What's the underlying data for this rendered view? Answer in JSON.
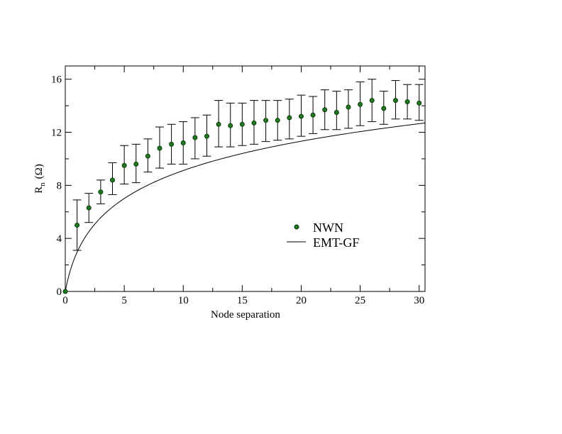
{
  "chart_data": {
    "type": "scatter",
    "xlabel": "Node separation",
    "ylabel": "R",
    "ylabel_sub": "n",
    "ylabel_unit": "(Ω)",
    "xlim": [
      0,
      30.5
    ],
    "ylim": [
      0,
      17
    ],
    "xticks": [
      0,
      5,
      10,
      15,
      20,
      25,
      30
    ],
    "yticks": [
      0,
      4,
      8,
      12,
      16
    ],
    "x_minor_step": 2.5,
    "y_minor_step": 2,
    "grid": false,
    "legend_position": "center-right",
    "series": [
      {
        "name": "NWN",
        "kind": "points-with-errorbars",
        "color": "#1f7a1f",
        "x": [
          0,
          1,
          2,
          3,
          4,
          5,
          6,
          7,
          8,
          9,
          10,
          11,
          12,
          13,
          14,
          15,
          16,
          17,
          18,
          19,
          20,
          21,
          22,
          23,
          24,
          25,
          26,
          27,
          28,
          29,
          30
        ],
        "y": [
          0,
          5.0,
          6.3,
          7.5,
          8.4,
          9.5,
          9.6,
          10.2,
          10.8,
          11.1,
          11.2,
          11.6,
          11.7,
          12.6,
          12.5,
          12.6,
          12.7,
          12.9,
          12.9,
          13.1,
          13.2,
          13.3,
          13.7,
          13.5,
          13.9,
          14.1,
          14.4,
          13.8,
          14.4,
          14.3,
          14.2
        ],
        "err_low": [
          0,
          3.1,
          5.2,
          6.6,
          7.3,
          8.1,
          8.2,
          9.0,
          9.3,
          9.6,
          9.6,
          10.0,
          10.2,
          10.9,
          10.9,
          11.0,
          11.1,
          11.3,
          11.4,
          11.5,
          11.7,
          11.9,
          12.2,
          12.2,
          12.3,
          12.5,
          12.8,
          12.6,
          13.0,
          13.0,
          12.9
        ],
        "err_high": [
          0,
          6.9,
          7.4,
          8.4,
          9.7,
          11.0,
          11.1,
          11.5,
          12.4,
          12.6,
          12.8,
          13.1,
          13.3,
          14.4,
          14.2,
          14.2,
          14.4,
          14.4,
          14.4,
          14.5,
          14.8,
          14.7,
          15.2,
          15.1,
          15.2,
          15.8,
          16.0,
          15.1,
          15.9,
          15.6,
          15.6
        ]
      },
      {
        "name": "EMT-GF",
        "kind": "line",
        "color": "#000000"
      }
    ]
  }
}
